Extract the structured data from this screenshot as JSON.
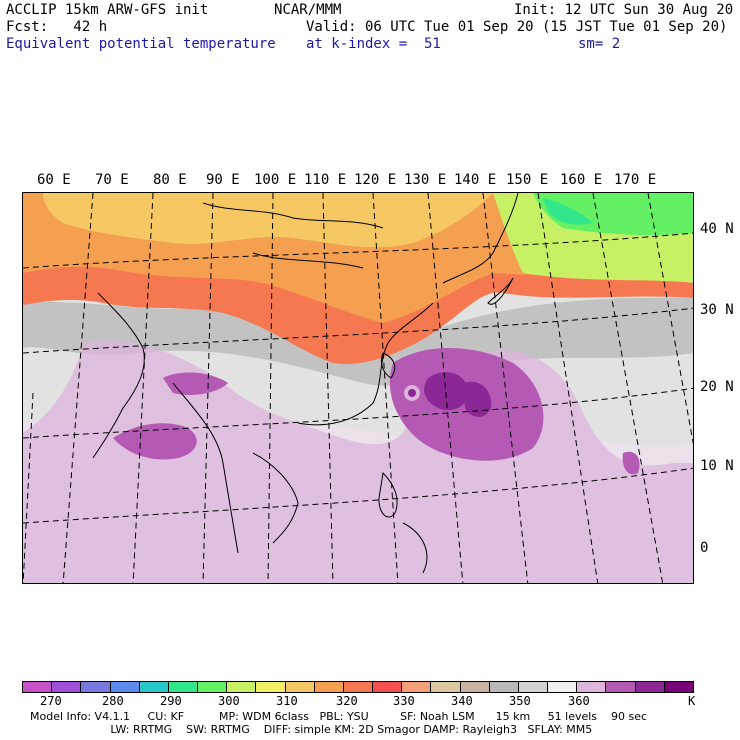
{
  "header": {
    "line1_left": "ACCLIP 15km ARW-GFS init",
    "line1_mid": "NCAR/MMM",
    "line1_right": "Init: 12 UTC Sun 30 Aug 20",
    "line2_left": "Fcst:   42 h",
    "line2_right": "Valid: 06 UTC Tue 01 Sep 20 (15 JST Tue 01 Sep 20)",
    "line3_left": "Equivalent potential temperature",
    "line3_mid": "at k-index =  51",
    "line3_right": "sm= 2"
  },
  "map": {
    "lon_labels": [
      "60 E",
      "70 E",
      "80 E",
      "90 E",
      "100 E",
      "110 E",
      "120 E",
      "130 E",
      "140 E",
      "150 E",
      "160 E",
      "170 E"
    ],
    "lat_labels": [
      "40 N",
      "30 N",
      "20 N",
      "10 N",
      "0"
    ]
  },
  "colorbar": {
    "colors": [
      "#c850c8",
      "#a050d8",
      "#7878e0",
      "#5a8cf0",
      "#28c8c8",
      "#32e68c",
      "#64f064",
      "#c8f064",
      "#f0f064",
      "#f5c864",
      "#f5a050",
      "#f57850",
      "#f55050",
      "#f5a078",
      "#dcc8a0",
      "#c8b4a0",
      "#b9b9b9",
      "#d2d2d2",
      "#f0f0f0",
      "#dcb4dc",
      "#b45ab4",
      "#8c2896",
      "#780078"
    ],
    "labels": [
      "270",
      "280",
      "290",
      "300",
      "310",
      "320",
      "330",
      "340",
      "350",
      "360"
    ],
    "unit": "K"
  },
  "footer": {
    "line1": "Model Info: V4.1.1     CU: KF          MP: WDM 6class   PBL: YSU         SF: Noah LSM      15 km     51 levels    90 sec",
    "line2": "                       LW: RRTMG    SW: RRTMG    DIFF: simple KM: 2D Smagor DAMP: Rayleigh3   SFLAY: MM5"
  }
}
